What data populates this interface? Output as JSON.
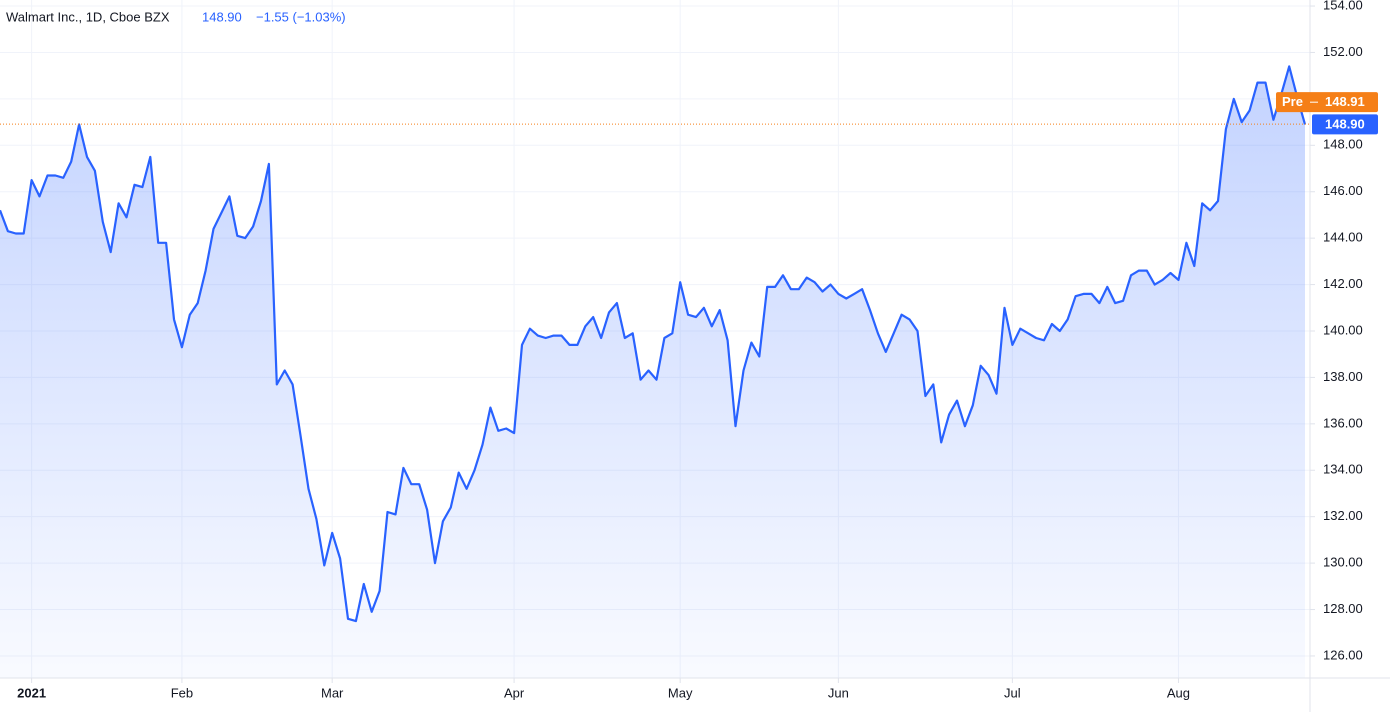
{
  "chart_data": {
    "type": "area",
    "header": {
      "symbol": "Walmart Inc., 1D, Cboe BZX",
      "price": "148.90",
      "change": "−1.55 (−1.03%)"
    },
    "categories": [
      null,
      null,
      null,
      null,
      "2021",
      null,
      null,
      null,
      null,
      null,
      null,
      null,
      null,
      null,
      null,
      null,
      null,
      null,
      null,
      null,
      null,
      null,
      null,
      "Feb",
      null,
      null,
      null,
      null,
      null,
      null,
      null,
      null,
      null,
      null,
      null,
      null,
      null,
      null,
      null,
      null,
      null,
      null,
      "Mar",
      null,
      null,
      null,
      null,
      null,
      null,
      null,
      null,
      null,
      null,
      null,
      null,
      null,
      null,
      null,
      null,
      null,
      null,
      null,
      null,
      null,
      null,
      "Apr",
      null,
      null,
      null,
      null,
      null,
      null,
      null,
      null,
      null,
      null,
      null,
      null,
      null,
      null,
      null,
      null,
      null,
      null,
      null,
      null,
      "May",
      null,
      null,
      null,
      null,
      null,
      null,
      null,
      null,
      null,
      null,
      null,
      null,
      null,
      null,
      null,
      null,
      null,
      null,
      null,
      "Jun",
      null,
      null,
      null,
      null,
      null,
      null,
      null,
      null,
      null,
      null,
      null,
      null,
      null,
      null,
      null,
      null,
      null,
      null,
      null,
      null,
      null,
      "Jul",
      null,
      null,
      null,
      null,
      null,
      null,
      null,
      null,
      null,
      null,
      null,
      null,
      null,
      null,
      null,
      null,
      null,
      null,
      null,
      null,
      "Aug",
      null,
      null,
      null,
      null,
      null,
      null,
      null,
      null,
      null,
      null,
      null,
      null,
      null,
      null,
      null,
      null
    ],
    "series": [
      {
        "name": "Walmart Inc.",
        "color": "#2962ff",
        "values": [
          145.2,
          144.3,
          144.2,
          144.2,
          146.5,
          145.8,
          146.7,
          146.7,
          146.6,
          147.3,
          148.9,
          147.5,
          146.9,
          144.7,
          143.4,
          145.5,
          144.9,
          146.3,
          146.2,
          147.5,
          143.8,
          143.8,
          140.5,
          139.3,
          140.7,
          141.2,
          142.6,
          144.4,
          145.1,
          145.8,
          144.1,
          144.0,
          144.5,
          145.6,
          147.2,
          137.7,
          138.3,
          137.7,
          135.5,
          133.2,
          131.9,
          129.9,
          131.3,
          130.2,
          127.6,
          127.5,
          129.1,
          127.9,
          128.8,
          132.2,
          132.1,
          134.1,
          133.4,
          133.4,
          132.3,
          130.0,
          131.8,
          132.4,
          133.9,
          133.2,
          134.0,
          135.1,
          136.7,
          135.7,
          135.8,
          135.6,
          139.4,
          140.1,
          139.8,
          139.7,
          139.8,
          139.8,
          139.4,
          139.4,
          140.2,
          140.6,
          139.7,
          140.8,
          141.2,
          139.7,
          139.9,
          137.9,
          138.3,
          137.9,
          139.7,
          139.9,
          142.1,
          140.7,
          140.6,
          141.0,
          140.2,
          140.9,
          139.6,
          135.9,
          138.3,
          139.5,
          138.9,
          141.9,
          141.9,
          142.4,
          141.8,
          141.8,
          142.3,
          142.1,
          141.7,
          142.0,
          141.6,
          141.4,
          141.6,
          141.8,
          140.9,
          139.9,
          139.1,
          139.9,
          140.7,
          140.5,
          140.0,
          137.2,
          137.7,
          135.2,
          136.4,
          137.0,
          135.9,
          136.8,
          138.5,
          138.1,
          137.3,
          141.0,
          139.4,
          140.1,
          139.9,
          139.7,
          139.6,
          140.3,
          140.0,
          140.5,
          141.5,
          141.6,
          141.6,
          141.2,
          141.9,
          141.2,
          141.3,
          142.4,
          142.6,
          142.6,
          142.0,
          142.2,
          142.5,
          142.2,
          143.8,
          142.8,
          145.5,
          145.2,
          145.6,
          148.7,
          150.0,
          149.0,
          149.5,
          150.7,
          150.7,
          149.1,
          150.2,
          151.4,
          150.1,
          148.9
        ]
      }
    ],
    "ylim": [
      125.05,
      154.26
    ],
    "yticks": [
      {
        "value": 126,
        "label": "126.00"
      },
      {
        "value": 128,
        "label": "128.00"
      },
      {
        "value": 130,
        "label": "130.00"
      },
      {
        "value": 132,
        "label": "132.00"
      },
      {
        "value": 134,
        "label": "134.00"
      },
      {
        "value": 136,
        "label": "136.00"
      },
      {
        "value": 138,
        "label": "138.00"
      },
      {
        "value": 140,
        "label": "140.00"
      },
      {
        "value": 142,
        "label": "142.00"
      },
      {
        "value": 144,
        "label": "144.00"
      },
      {
        "value": 146,
        "label": "146.00"
      },
      {
        "value": 148,
        "label": "148.00"
      },
      {
        "value": 150,
        "label": "150.00"
      },
      {
        "value": 152,
        "label": "152.00"
      },
      {
        "value": 154,
        "label": "154.00"
      }
    ],
    "grid": true,
    "price_line": {
      "value": 148.9,
      "label": "148.90",
      "color": "#2962ff"
    },
    "premarket_line": {
      "name": "Pre",
      "value": 148.91,
      "label": "148.91",
      "color": "#f57f17"
    }
  }
}
